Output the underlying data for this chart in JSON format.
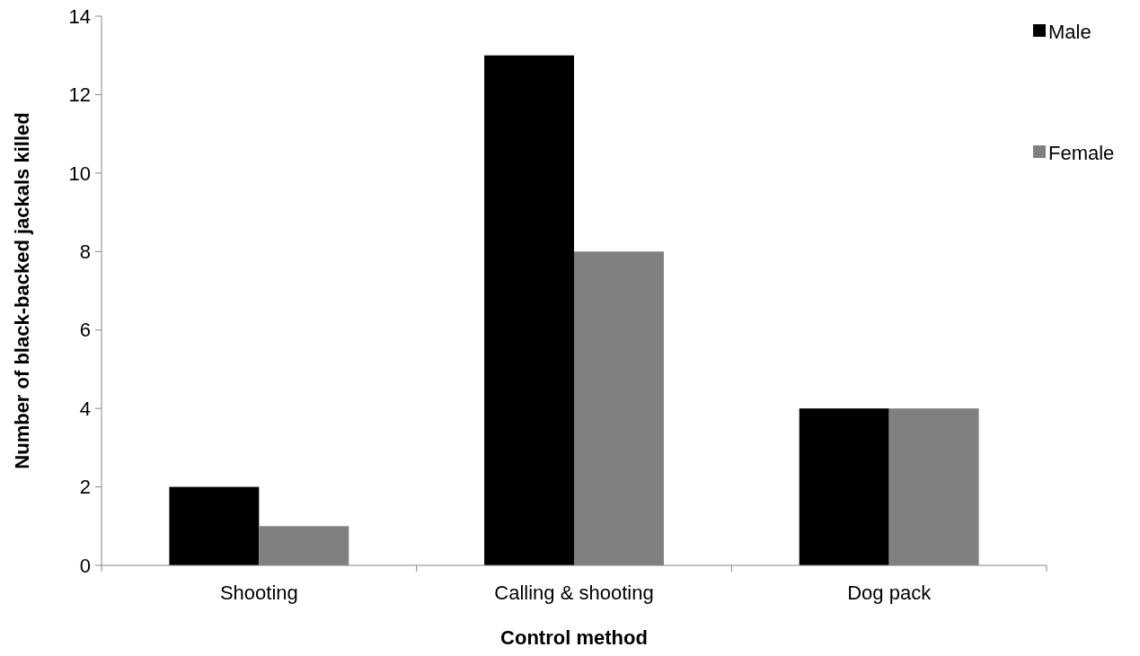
{
  "chart_data": {
    "type": "bar",
    "xlabel": "Control method",
    "ylabel": "Number of black-backed jackals killed",
    "categories": [
      "Shooting",
      "Calling & shooting",
      "Dog pack"
    ],
    "series": [
      {
        "name": "Male",
        "color": "#000000",
        "values": [
          2,
          13,
          4
        ]
      },
      {
        "name": "Female",
        "color": "#808080",
        "values": [
          1,
          8,
          4
        ]
      }
    ],
    "ylim": [
      0,
      14
    ],
    "yticks": [
      0,
      2,
      4,
      6,
      8,
      10,
      12,
      14
    ],
    "grid": false,
    "legend": "top right"
  }
}
